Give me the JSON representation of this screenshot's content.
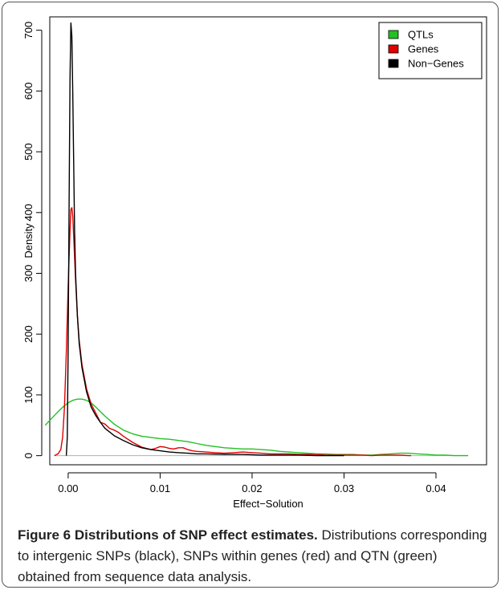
{
  "chart_data": {
    "type": "line",
    "title": "",
    "xlabel": "Effect−Solution",
    "ylabel": "Density",
    "xlim": [
      -0.002,
      0.0455
    ],
    "ylim": [
      -15,
      722
    ],
    "x_ticks": [
      0.0,
      0.01,
      0.02,
      0.03,
      0.04
    ],
    "x_tick_labels": [
      "0.00",
      "0.01",
      "0.02",
      "0.03",
      "0.04"
    ],
    "y_ticks": [
      0,
      100,
      200,
      300,
      400,
      500,
      600,
      700
    ],
    "y_tick_labels": [
      "0",
      "100",
      "200",
      "300",
      "400",
      "500",
      "600",
      "700"
    ],
    "grid": false,
    "baseline_y": 0,
    "baseline_x_range": [
      -0.0015,
      0.0435
    ],
    "legend_placement": "top-right",
    "series": [
      {
        "name": "QTLs",
        "color": "#22c022",
        "x": [
          -0.0025,
          -0.002,
          -0.0015,
          -0.001,
          -0.0005,
          0.0,
          0.0005,
          0.001,
          0.0015,
          0.002,
          0.0025,
          0.003,
          0.004,
          0.005,
          0.006,
          0.007,
          0.008,
          0.009,
          0.01,
          0.011,
          0.012,
          0.013,
          0.014,
          0.015,
          0.016,
          0.017,
          0.018,
          0.019,
          0.02,
          0.021,
          0.022,
          0.023,
          0.024,
          0.025,
          0.026,
          0.027,
          0.028,
          0.029,
          0.03,
          0.031,
          0.032,
          0.033,
          0.034,
          0.035,
          0.036,
          0.037,
          0.038,
          0.039,
          0.04,
          0.041,
          0.042,
          0.043,
          0.0435
        ],
        "y": [
          50,
          58,
          66,
          74,
          81,
          87,
          91,
          93,
          93,
          91,
          87,
          80,
          65,
          52,
          42,
          36,
          32,
          30,
          28,
          27,
          25,
          23,
          20,
          17,
          15,
          13,
          12,
          11,
          11,
          10,
          9,
          7,
          6,
          5,
          4,
          3,
          3,
          2,
          2,
          2,
          1,
          1,
          2,
          3,
          4,
          4,
          3,
          2,
          1,
          1,
          0,
          0,
          0
        ]
      },
      {
        "name": "Genes",
        "color": "#e00000",
        "x": [
          -0.0015,
          -0.0011,
          -0.0008,
          -0.0006,
          -0.0004,
          -0.0002,
          0.0,
          0.0002,
          0.0003,
          0.0004,
          0.0005,
          0.0006,
          0.0008,
          0.001,
          0.0012,
          0.0015,
          0.002,
          0.0025,
          0.003,
          0.0035,
          0.004,
          0.0045,
          0.005,
          0.0055,
          0.006,
          0.007,
          0.008,
          0.009,
          0.0095,
          0.01,
          0.0105,
          0.011,
          0.0115,
          0.012,
          0.0125,
          0.013,
          0.0135,
          0.014,
          0.015,
          0.016,
          0.017,
          0.018,
          0.019,
          0.02,
          0.021,
          0.022,
          0.023,
          0.024,
          0.025,
          0.026,
          0.027,
          0.028,
          0.029,
          0.03,
          0.031,
          0.032,
          0.033,
          0.034,
          0.035,
          0.036,
          0.037,
          0.0373
        ],
        "y": [
          0,
          3,
          10,
          30,
          80,
          170,
          280,
          370,
          405,
          408,
          395,
          360,
          290,
          230,
          190,
          150,
          110,
          85,
          70,
          55,
          52,
          45,
          42,
          38,
          32,
          22,
          14,
          10,
          12,
          15,
          14,
          12,
          11,
          13,
          13,
          10,
          8,
          7,
          6,
          5,
          4,
          5,
          6,
          5,
          4,
          3,
          3,
          3,
          2,
          2,
          2,
          1,
          1,
          1,
          1,
          1,
          0,
          1,
          1,
          1,
          0,
          0
        ]
      },
      {
        "name": "Non−Genes",
        "color": "#000000",
        "x": [
          -0.0002,
          -0.0001,
          0.0,
          0.0001,
          0.0002,
          0.0003,
          0.0004,
          0.0005,
          0.0006,
          0.0007,
          0.0008,
          0.001,
          0.0012,
          0.0015,
          0.002,
          0.0025,
          0.003,
          0.0035,
          0.004,
          0.005,
          0.006,
          0.007,
          0.008,
          0.009,
          0.01,
          0.011,
          0.012,
          0.013,
          0.014,
          0.015,
          0.017,
          0.019,
          0.021,
          0.023,
          0.025,
          0.027,
          0.03
        ],
        "y": [
          0,
          30,
          180,
          420,
          620,
          712,
          690,
          600,
          480,
          370,
          300,
          230,
          185,
          145,
          105,
          80,
          66,
          55,
          45,
          33,
          25,
          18,
          13,
          10,
          8,
          6,
          5,
          4,
          3,
          3,
          2,
          2,
          1,
          1,
          1,
          0,
          0
        ]
      }
    ]
  },
  "caption": {
    "title": "Figure 6 Distributions of SNP effect estimates.",
    "body": " Distributions corresponding to intergenic SNPs (black), SNPs within genes (red) and QTN (green) obtained from sequence data analysis."
  }
}
